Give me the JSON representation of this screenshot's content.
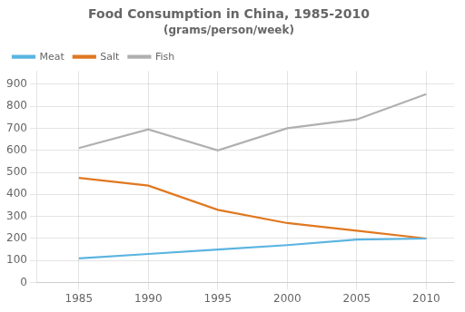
{
  "chart_data": {
    "type": "line",
    "title": "Food Consumption in China, 1985-2010",
    "subtitle": "(grams/person/week)",
    "x": [
      1985,
      1990,
      1995,
      2000,
      2005,
      2010
    ],
    "series": [
      {
        "name": "Meat",
        "color": "#5ab4e0",
        "values": [
          110,
          130,
          150,
          170,
          195,
          200
        ]
      },
      {
        "name": "Salt",
        "color": "#e07820",
        "values": [
          475,
          440,
          330,
          270,
          235,
          200
        ]
      },
      {
        "name": "Fish",
        "color": "#b0b0b0",
        "values": [
          610,
          695,
          600,
          700,
          740,
          855
        ]
      }
    ],
    "xlim": [
      1982,
      2012
    ],
    "xticks": [
      1985,
      1990,
      1995,
      2000,
      2005,
      2010
    ],
    "ylim": [
      0,
      960
    ],
    "yticks": [
      0,
      100,
      200,
      300,
      400,
      500,
      600,
      700,
      800,
      900
    ],
    "grid": true,
    "legend": "upper left"
  }
}
